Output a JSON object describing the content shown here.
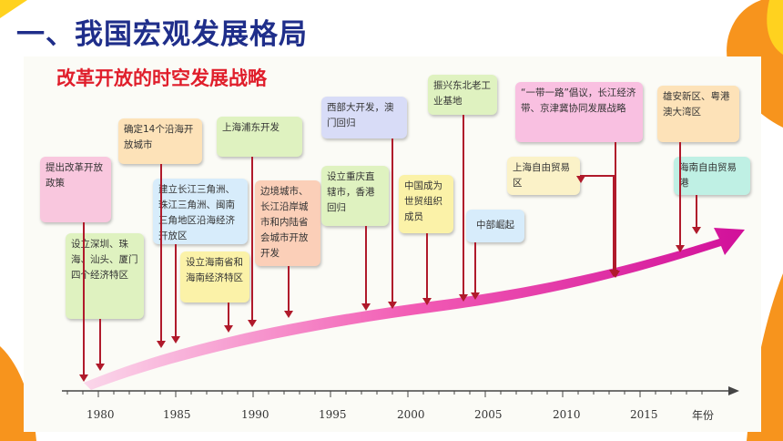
{
  "title": "一、我国宏观发展格局",
  "subtitle": "改革开放的时空发展战略",
  "events": [
    {
      "id": "e1",
      "text": "提出改革开放政策"
    },
    {
      "id": "e2",
      "text": "设立深圳、珠海、汕头、厦门四个经济特区"
    },
    {
      "id": "e3",
      "text": "确定14个沿海开放城市"
    },
    {
      "id": "e4",
      "text": "建立长江三角洲、珠江三角洲、闽南三角地区沿海经济开放区"
    },
    {
      "id": "e5",
      "text": "设立海南省和海南经济特区"
    },
    {
      "id": "e6",
      "text": "上海浦东开发"
    },
    {
      "id": "e7",
      "text": "边境城市、长江沿岸城市和内陆省会城市开放开发"
    },
    {
      "id": "e8",
      "text": "西部大开发，澳门回归"
    },
    {
      "id": "e9",
      "text": "设立重庆直辖市，香港回归"
    },
    {
      "id": "e10",
      "text": "中国成为世贸组织成员"
    },
    {
      "id": "e11",
      "text": "振兴东北老工业基地"
    },
    {
      "id": "e12",
      "text": "中部崛起"
    },
    {
      "id": "e13",
      "text": "“一带一路”倡议，长江经济带、京津冀协同发展战略"
    },
    {
      "id": "e14",
      "text": "上海自由贸易区"
    },
    {
      "id": "e15",
      "text": "雄安新区、粤港澳大湾区"
    },
    {
      "id": "e16",
      "text": "海南自由贸易港"
    }
  ],
  "axis": {
    "ticks": [
      "1980",
      "1985",
      "1990",
      "1995",
      "2000",
      "2005",
      "2010",
      "2015"
    ],
    "unit": "年份"
  },
  "colors": {
    "title": "#1f2e8a",
    "subtitle": "#e01e2b",
    "arrow": "#b01a2b",
    "accent_orange": "#f7941d"
  }
}
